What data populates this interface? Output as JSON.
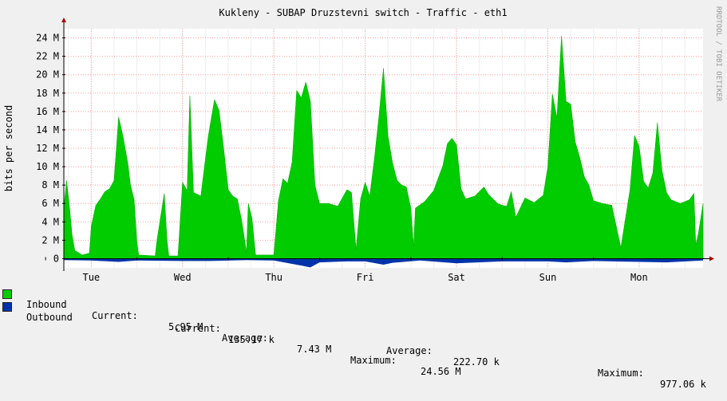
{
  "title": "Kukleny - SUBAP Druzstevni switch - Traffic - eth1",
  "watermark": "RRDTOOL / TOBI OETIKER",
  "colors": {
    "background": "#f0f0f0",
    "canvas": "#ffffff",
    "grid": "#ff9f9f",
    "axis": "#000000",
    "inbound": "#00cc00",
    "outbound": "#0033aa"
  },
  "chart_data": {
    "type": "area",
    "title": "Kukleny - SUBAP Druzstevni switch - Traffic - eth1",
    "ylabel": "bits per second",
    "ylim": [
      -1000000,
      25000000
    ],
    "y_ticks": [
      {
        "value": 0,
        "label": "0"
      },
      {
        "value": 2000000,
        "label": "2 M"
      },
      {
        "value": 4000000,
        "label": "4 M"
      },
      {
        "value": 6000000,
        "label": "6 M"
      },
      {
        "value": 8000000,
        "label": "8 M"
      },
      {
        "value": 10000000,
        "label": "10 M"
      },
      {
        "value": 12000000,
        "label": "12 M"
      },
      {
        "value": 14000000,
        "label": "14 M"
      },
      {
        "value": 16000000,
        "label": "16 M"
      },
      {
        "value": 18000000,
        "label": "18 M"
      },
      {
        "value": 20000000,
        "label": "20 M"
      },
      {
        "value": 22000000,
        "label": "22 M"
      },
      {
        "value": 24000000,
        "label": "24 M"
      }
    ],
    "x_ticks": [
      "Tue",
      "Wed",
      "Thu",
      "Fri",
      "Sat",
      "Sun",
      "Mon"
    ],
    "x_range_days": [
      -0.3,
      6.7
    ],
    "series": [
      {
        "name": "Inbound",
        "color": "#00cc00",
        "points": [
          [
            -0.3,
            5.6
          ],
          [
            -0.27,
            8.5
          ],
          [
            -0.24,
            5.8
          ],
          [
            -0.21,
            2.6
          ],
          [
            -0.18,
            0.9
          ],
          [
            -0.1,
            0.4
          ],
          [
            -0.02,
            0.6
          ],
          [
            0.0,
            3.5
          ],
          [
            0.05,
            5.8
          ],
          [
            0.1,
            6.5
          ],
          [
            0.15,
            7.3
          ],
          [
            0.2,
            7.6
          ],
          [
            0.25,
            8.5
          ],
          [
            0.3,
            15.4
          ],
          [
            0.35,
            13.2
          ],
          [
            0.4,
            10.4
          ],
          [
            0.43,
            8.0
          ],
          [
            0.47,
            6.4
          ],
          [
            0.5,
            1.8
          ],
          [
            0.52,
            0.4
          ],
          [
            0.7,
            0.3
          ],
          [
            0.72,
            2.0
          ],
          [
            0.8,
            7.1
          ],
          [
            0.83,
            2.0
          ],
          [
            0.85,
            0.3
          ],
          [
            0.95,
            0.3
          ],
          [
            1.0,
            8.3
          ],
          [
            1.05,
            7.4
          ],
          [
            1.08,
            17.7
          ],
          [
            1.12,
            7.2
          ],
          [
            1.2,
            6.8
          ],
          [
            1.28,
            13.2
          ],
          [
            1.35,
            17.3
          ],
          [
            1.4,
            16.1
          ],
          [
            1.45,
            12.0
          ],
          [
            1.5,
            7.5
          ],
          [
            1.55,
            6.8
          ],
          [
            1.6,
            6.5
          ],
          [
            1.65,
            4.0
          ],
          [
            1.7,
            0.7
          ],
          [
            1.72,
            6.0
          ],
          [
            1.76,
            4.4
          ],
          [
            1.8,
            0.4
          ],
          [
            2.0,
            0.4
          ],
          [
            2.05,
            6.3
          ],
          [
            2.1,
            8.7
          ],
          [
            2.15,
            8.2
          ],
          [
            2.2,
            10.5
          ],
          [
            2.25,
            18.3
          ],
          [
            2.3,
            17.5
          ],
          [
            2.35,
            19.2
          ],
          [
            2.4,
            17.1
          ],
          [
            2.45,
            8.0
          ],
          [
            2.5,
            6.0
          ],
          [
            2.6,
            6.0
          ],
          [
            2.7,
            5.7
          ],
          [
            2.8,
            7.5
          ],
          [
            2.85,
            7.2
          ],
          [
            2.9,
            1.0
          ],
          [
            2.95,
            6.5
          ],
          [
            3.0,
            8.3
          ],
          [
            3.05,
            6.8
          ],
          [
            3.1,
            10.8
          ],
          [
            3.15,
            15.4
          ],
          [
            3.2,
            20.7
          ],
          [
            3.25,
            13.3
          ],
          [
            3.3,
            10.4
          ],
          [
            3.35,
            8.5
          ],
          [
            3.4,
            8.0
          ],
          [
            3.45,
            7.8
          ],
          [
            3.5,
            5.5
          ],
          [
            3.53,
            1.3
          ],
          [
            3.55,
            5.5
          ],
          [
            3.65,
            6.2
          ],
          [
            3.75,
            7.4
          ],
          [
            3.85,
            10.1
          ],
          [
            3.9,
            12.5
          ],
          [
            3.95,
            13.1
          ],
          [
            4.0,
            12.4
          ],
          [
            4.05,
            7.6
          ],
          [
            4.1,
            6.5
          ],
          [
            4.2,
            6.8
          ],
          [
            4.3,
            7.8
          ],
          [
            4.35,
            7.0
          ],
          [
            4.45,
            6.0
          ],
          [
            4.5,
            5.8
          ],
          [
            4.55,
            5.7
          ],
          [
            4.6,
            7.3
          ],
          [
            4.65,
            4.5
          ],
          [
            4.75,
            6.6
          ],
          [
            4.85,
            6.1
          ],
          [
            4.95,
            6.9
          ],
          [
            5.0,
            10.0
          ],
          [
            5.05,
            17.9
          ],
          [
            5.1,
            15.3
          ],
          [
            5.15,
            24.2
          ],
          [
            5.2,
            17.1
          ],
          [
            5.25,
            16.8
          ],
          [
            5.3,
            12.7
          ],
          [
            5.35,
            11.0
          ],
          [
            5.4,
            8.9
          ],
          [
            5.45,
            8.0
          ],
          [
            5.5,
            6.3
          ],
          [
            5.6,
            6.0
          ],
          [
            5.7,
            5.8
          ],
          [
            5.8,
            1.2
          ],
          [
            5.9,
            7.5
          ],
          [
            5.95,
            13.4
          ],
          [
            6.0,
            12.2
          ],
          [
            6.05,
            8.4
          ],
          [
            6.1,
            7.7
          ],
          [
            6.15,
            9.3
          ],
          [
            6.2,
            14.8
          ],
          [
            6.25,
            9.6
          ],
          [
            6.3,
            7.2
          ],
          [
            6.35,
            6.4
          ],
          [
            6.45,
            6.0
          ],
          [
            6.55,
            6.4
          ],
          [
            6.6,
            7.1
          ],
          [
            6.62,
            1.5
          ],
          [
            6.65,
            2.8
          ],
          [
            6.7,
            6.0
          ]
        ]
      },
      {
        "name": "Outbound",
        "color": "#0033aa",
        "points": [
          [
            -0.3,
            0.15
          ],
          [
            0.0,
            0.2
          ],
          [
            0.3,
            0.35
          ],
          [
            0.5,
            0.2
          ],
          [
            1.0,
            0.25
          ],
          [
            1.3,
            0.25
          ],
          [
            1.7,
            0.15
          ],
          [
            2.0,
            0.2
          ],
          [
            2.3,
            0.75
          ],
          [
            2.4,
            0.95
          ],
          [
            2.5,
            0.4
          ],
          [
            2.8,
            0.3
          ],
          [
            3.0,
            0.3
          ],
          [
            3.2,
            0.65
          ],
          [
            3.3,
            0.45
          ],
          [
            3.6,
            0.2
          ],
          [
            4.0,
            0.5
          ],
          [
            4.5,
            0.3
          ],
          [
            5.0,
            0.3
          ],
          [
            5.2,
            0.4
          ],
          [
            5.5,
            0.25
          ],
          [
            6.0,
            0.35
          ],
          [
            6.3,
            0.4
          ],
          [
            6.7,
            0.2
          ]
        ]
      }
    ],
    "legend": [
      {
        "name": "Inbound",
        "current": "5.95 M",
        "average": "7.43 M",
        "maximum": "24.56 M"
      },
      {
        "name": "Outbound",
        "current": "135.17 k",
        "average": "222.70 k",
        "maximum": "977.06 k"
      }
    ]
  },
  "legend": {
    "inbound": {
      "name": "Inbound",
      "current_label": "Current:",
      "current": "5.95 M",
      "average_label": "Average:",
      "average": "7.43 M",
      "maximum_label": "Maximum:",
      "maximum": "24.56 M"
    },
    "outbound": {
      "name": "Outbound",
      "current_label": "Current:",
      "current": "135.17 k",
      "average_label": "Average:",
      "average": "222.70 k",
      "maximum_label": "Maximum:",
      "maximum": "977.06 k"
    }
  }
}
